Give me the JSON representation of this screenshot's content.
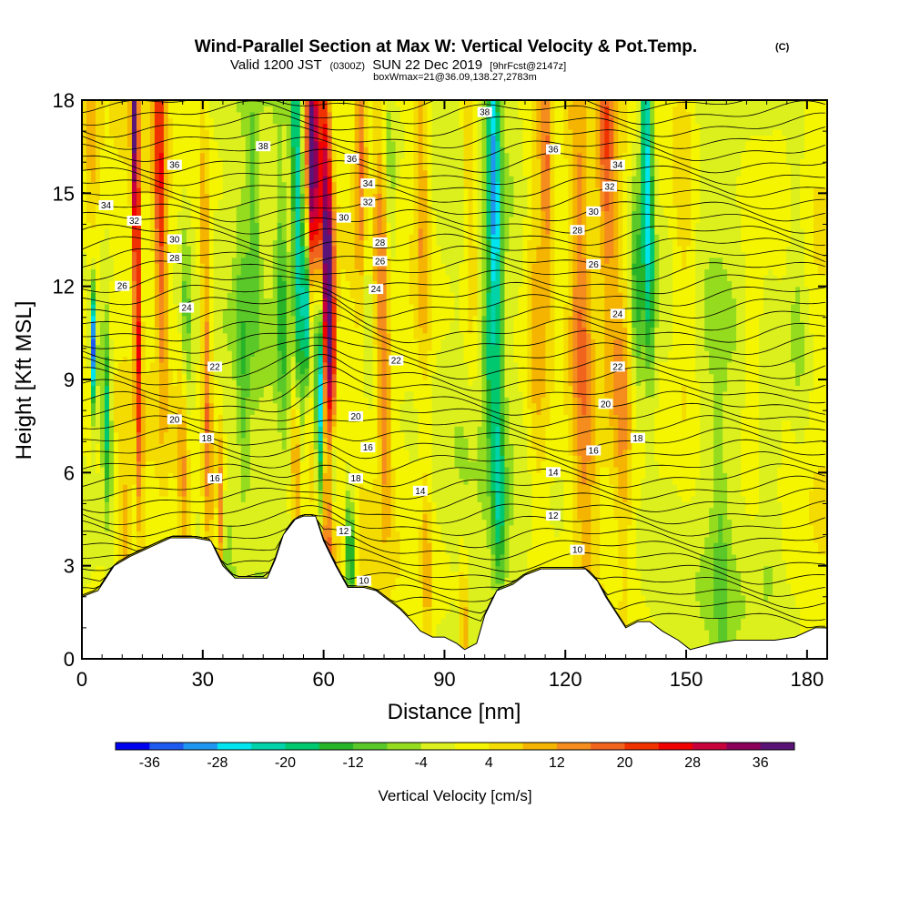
{
  "header": {
    "title": "Wind-Parallel Section at Max W: Vertical Velocity & Pot.Temp.",
    "title_units": "(C)",
    "valid_main": "Valid 1200 JST",
    "valid_zulu": "(0300Z)",
    "valid_date": "SUN 22 Dec 2019",
    "forecast": "[9hrFcst@2147z]",
    "box_info": "boxWmax=21@36.09,138.27,2783m"
  },
  "chart_data": {
    "type": "heatmap",
    "title": "Wind-Parallel Section at Max W: Vertical Velocity & Pot.Temp.",
    "xlabel": "Distance [nm]",
    "ylabel": "Height [Kft MSL]",
    "xlim": [
      0,
      185
    ],
    "ylim": [
      0,
      18
    ],
    "x_ticks": [
      "0",
      "30",
      "60",
      "90",
      "120",
      "150",
      "180"
    ],
    "y_ticks": [
      "0",
      "3",
      "6",
      "9",
      "12",
      "15",
      "18"
    ],
    "colorbar": {
      "label": "Vertical Velocity [cm/s]",
      "ticks": [
        "-36",
        "-28",
        "-20",
        "-12",
        "-4",
        "4",
        "12",
        "20",
        "28",
        "36"
      ],
      "levels": [
        -36,
        -32,
        -28,
        -24,
        -20,
        -16,
        -12,
        -8,
        -4,
        0,
        4,
        8,
        12,
        16,
        20,
        24,
        28,
        32,
        36,
        40
      ],
      "colors": [
        "#0000f0",
        "#1f5af0",
        "#1f96f0",
        "#00e4f0",
        "#00d2aa",
        "#00c86e",
        "#28b428",
        "#5ac828",
        "#96dc1e",
        "#dcf01e",
        "#f5f500",
        "#f5dc00",
        "#f5b400",
        "#f58c1e",
        "#f0641e",
        "#f03200",
        "#f00000",
        "#c8003c",
        "#8c005a",
        "#5a1478"
      ]
    },
    "terrain": [
      [
        0,
        2.0
      ],
      [
        4,
        2.2
      ],
      [
        8,
        3.0
      ],
      [
        12,
        3.3
      ],
      [
        17,
        3.6
      ],
      [
        22,
        3.9
      ],
      [
        28,
        3.9
      ],
      [
        32,
        3.8
      ],
      [
        35,
        3.0
      ],
      [
        38,
        2.6
      ],
      [
        41,
        2.6
      ],
      [
        46,
        2.6
      ],
      [
        48,
        3.2
      ],
      [
        50,
        4.0
      ],
      [
        53,
        4.5
      ],
      [
        55,
        4.6
      ],
      [
        58,
        4.6
      ],
      [
        60,
        3.8
      ],
      [
        63,
        3.0
      ],
      [
        66,
        2.3
      ],
      [
        70,
        2.3
      ],
      [
        73,
        2.2
      ],
      [
        76,
        1.9
      ],
      [
        79,
        1.6
      ],
      [
        82,
        1.2
      ],
      [
        84,
        0.9
      ],
      [
        87,
        0.7
      ],
      [
        90,
        0.7
      ],
      [
        93,
        0.5
      ],
      [
        95,
        0.3
      ],
      [
        98,
        0.5
      ],
      [
        100,
        1.4
      ],
      [
        103,
        2.2
      ],
      [
        107,
        2.4
      ],
      [
        110,
        2.7
      ],
      [
        114,
        2.9
      ],
      [
        120,
        2.9
      ],
      [
        125,
        2.9
      ],
      [
        128,
        2.5
      ],
      [
        130,
        2.0
      ],
      [
        132,
        1.6
      ],
      [
        135,
        1.0
      ],
      [
        138,
        1.2
      ],
      [
        141,
        1.2
      ],
      [
        144,
        0.9
      ],
      [
        148,
        0.6
      ],
      [
        151,
        0.3
      ],
      [
        157,
        0.5
      ],
      [
        162,
        0.6
      ],
      [
        167,
        0.6
      ],
      [
        172,
        0.6
      ],
      [
        177,
        0.7
      ],
      [
        182,
        1.0
      ],
      [
        185,
        1.0
      ]
    ],
    "updrafts": [
      [
        14,
        17.2,
        11,
        0.9,
        34
      ],
      [
        20,
        16.0,
        7,
        1.5,
        22
      ],
      [
        58,
        16.5,
        5,
        1.6,
        40
      ],
      [
        61,
        13.0,
        9,
        1.6,
        28
      ],
      [
        62,
        10.5,
        5,
        1.2,
        20
      ],
      [
        56,
        8.5,
        3,
        1.2,
        12
      ],
      [
        53,
        6.5,
        3,
        1.2,
        15
      ],
      [
        31,
        9.0,
        8,
        1.3,
        16
      ],
      [
        34,
        4.5,
        3,
        0.9,
        18
      ],
      [
        25,
        6.0,
        4,
        1.5,
        12
      ],
      [
        70,
        16.0,
        5,
        1.5,
        16
      ],
      [
        75,
        7.0,
        3,
        1.5,
        10
      ],
      [
        75,
        13.0,
        5,
        2.0,
        12
      ],
      [
        85,
        15.0,
        6,
        2.0,
        12
      ],
      [
        85,
        3.0,
        3,
        1.2,
        10
      ],
      [
        94,
        1.0,
        2,
        0.9,
        14
      ],
      [
        97,
        16.0,
        6,
        1.8,
        12
      ],
      [
        113,
        11.0,
        7,
        2.6,
        10
      ],
      [
        116,
        16.0,
        4,
        1.6,
        16
      ],
      [
        124,
        12.0,
        7,
        2.6,
        13
      ],
      [
        131,
        16.5,
        6,
        2.2,
        16
      ],
      [
        134,
        8.0,
        5,
        2.2,
        10
      ],
      [
        150,
        14.0,
        8,
        3.0,
        8
      ],
      [
        167,
        10.0,
        5,
        2.8,
        6
      ],
      [
        3,
        16.0,
        4,
        2.0,
        8
      ],
      [
        10,
        4.0,
        3,
        1.5,
        8
      ],
      [
        125,
        4.0,
        5,
        3.0,
        6
      ],
      [
        60,
        2.5,
        3,
        1.2,
        10
      ],
      [
        40,
        1.8,
        3,
        1.5,
        8
      ]
    ],
    "downdrafts": [
      [
        3,
        10.0,
        2,
        0.8,
        36
      ],
      [
        6,
        8.0,
        3,
        1.2,
        22
      ],
      [
        59,
        9.0,
        4,
        1.0,
        34
      ],
      [
        56,
        11.0,
        3,
        1.1,
        28
      ],
      [
        62,
        6.2,
        2,
        1.2,
        24
      ],
      [
        66,
        3.5,
        2,
        1.0,
        24
      ],
      [
        54,
        14.5,
        7,
        1.3,
        22
      ],
      [
        50,
        11.5,
        4,
        1.5,
        12
      ],
      [
        103,
        15.0,
        7,
        1.6,
        26
      ],
      [
        101,
        10.0,
        3,
        1.4,
        12
      ],
      [
        103,
        5.0,
        3,
        1.8,
        14
      ],
      [
        141,
        15.5,
        6,
        1.5,
        28
      ],
      [
        138,
        12.0,
        4,
        1.6,
        14
      ],
      [
        77,
        15.0,
        4,
        1.5,
        10
      ],
      [
        71,
        12.0,
        3,
        1.5,
        12
      ],
      [
        43,
        14.0,
        4,
        1.5,
        10
      ],
      [
        40,
        9.0,
        6,
        1.5,
        8
      ],
      [
        26,
        10.5,
        4,
        1.5,
        10
      ],
      [
        35,
        2.2,
        3,
        1.2,
        8
      ],
      [
        170,
        6.0,
        4,
        3.0,
        6
      ],
      [
        158,
        3.0,
        6,
        2.0,
        6
      ],
      [
        178,
        12.0,
        6,
        2.5,
        6
      ]
    ],
    "isotherm_levels": [
      10,
      12,
      14,
      16,
      18,
      20,
      22,
      24,
      26,
      28,
      30,
      32,
      34,
      36,
      38
    ],
    "isotherm_labels": [
      {
        "text": "38",
        "x": 100,
        "y": 17.6
      },
      {
        "text": "38",
        "x": 45,
        "y": 16.5
      },
      {
        "text": "36",
        "x": 67,
        "y": 16.1
      },
      {
        "text": "36",
        "x": 23,
        "y": 15.9
      },
      {
        "text": "36",
        "x": 117,
        "y": 16.4
      },
      {
        "text": "34",
        "x": 71,
        "y": 15.3
      },
      {
        "text": "34",
        "x": 133,
        "y": 15.9
      },
      {
        "text": "34",
        "x": 6,
        "y": 14.6
      },
      {
        "text": "32",
        "x": 71,
        "y": 14.7
      },
      {
        "text": "32",
        "x": 131,
        "y": 15.2
      },
      {
        "text": "32",
        "x": 13,
        "y": 14.1
      },
      {
        "text": "30",
        "x": 65,
        "y": 14.2
      },
      {
        "text": "30",
        "x": 127,
        "y": 14.4
      },
      {
        "text": "30",
        "x": 23,
        "y": 13.5
      },
      {
        "text": "28",
        "x": 74,
        "y": 13.4
      },
      {
        "text": "28",
        "x": 123,
        "y": 13.8
      },
      {
        "text": "28",
        "x": 23,
        "y": 12.9
      },
      {
        "text": "26",
        "x": 74,
        "y": 12.8
      },
      {
        "text": "26",
        "x": 127,
        "y": 12.7
      },
      {
        "text": "26",
        "x": 10,
        "y": 12.0
      },
      {
        "text": "24",
        "x": 73,
        "y": 11.9
      },
      {
        "text": "24",
        "x": 133,
        "y": 11.1
      },
      {
        "text": "24",
        "x": 26,
        "y": 11.3
      },
      {
        "text": "22",
        "x": 78,
        "y": 9.6
      },
      {
        "text": "22",
        "x": 133,
        "y": 9.4
      },
      {
        "text": "22",
        "x": 33,
        "y": 9.4
      },
      {
        "text": "20",
        "x": 68,
        "y": 7.8
      },
      {
        "text": "20",
        "x": 130,
        "y": 8.2
      },
      {
        "text": "20",
        "x": 23,
        "y": 7.7
      },
      {
        "text": "18",
        "x": 138,
        "y": 7.1
      },
      {
        "text": "18",
        "x": 31,
        "y": 7.1
      },
      {
        "text": "16",
        "x": 71,
        "y": 6.8
      },
      {
        "text": "16",
        "x": 127,
        "y": 6.7
      },
      {
        "text": "16",
        "x": 33,
        "y": 5.8
      },
      {
        "text": "18",
        "x": 68,
        "y": 5.8
      },
      {
        "text": "14",
        "x": 84,
        "y": 5.4
      },
      {
        "text": "14",
        "x": 117,
        "y": 6.0
      },
      {
        "text": "12",
        "x": 65,
        "y": 4.1
      },
      {
        "text": "12",
        "x": 117,
        "y": 4.6
      },
      {
        "text": "10",
        "x": 123,
        "y": 3.5
      },
      {
        "text": "10",
        "x": 70,
        "y": 2.5
      }
    ]
  }
}
